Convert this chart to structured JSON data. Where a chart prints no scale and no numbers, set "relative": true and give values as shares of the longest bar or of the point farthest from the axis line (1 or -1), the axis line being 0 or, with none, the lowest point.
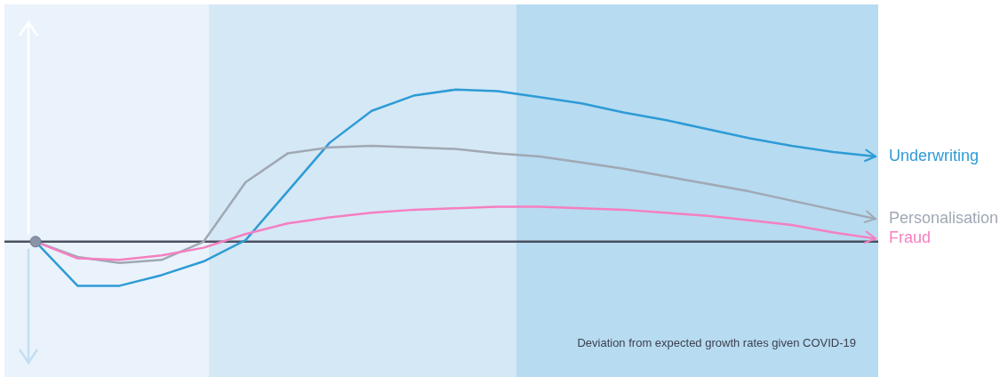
{
  "chart_data": {
    "type": "line",
    "relative": true,
    "categories": [
      null,
      null,
      null,
      null,
      null,
      null,
      null,
      null,
      null,
      null,
      null,
      null,
      null,
      null,
      null,
      null,
      null,
      null,
      null,
      null,
      null
    ],
    "line_style": "solid",
    "series": [
      {
        "name": "Underwriting",
        "color": "#2e9bd6",
        "values": [
          0,
          -0.29,
          -0.29,
          -0.22,
          -0.13,
          0.01,
          0.33,
          0.65,
          0.86,
          0.96,
          1.0,
          0.99,
          0.95,
          0.91,
          0.85,
          0.8,
          0.74,
          0.68,
          0.63,
          0.59,
          0.56
        ]
      },
      {
        "name": "Personalisation",
        "color": "#a0a8b4",
        "values": [
          0,
          -0.1,
          -0.14,
          -0.12,
          0,
          0.39,
          0.58,
          0.62,
          0.63,
          0.62,
          0.61,
          0.58,
          0.56,
          0.52,
          0.48,
          0.43,
          0.38,
          0.33,
          0.27,
          0.21,
          0.15
        ]
      },
      {
        "name": "Fraud",
        "color": "#f57fc0",
        "values": [
          0,
          -0.11,
          -0.12,
          -0.09,
          -0.04,
          0.05,
          0.12,
          0.16,
          0.19,
          0.21,
          0.22,
          0.23,
          0.23,
          0.22,
          0.21,
          0.19,
          0.17,
          0.14,
          0.11,
          0.06,
          0.02
        ]
      }
    ],
    "annotations": [
      "Deviation from expected growth rates given COVID-19"
    ]
  }
}
